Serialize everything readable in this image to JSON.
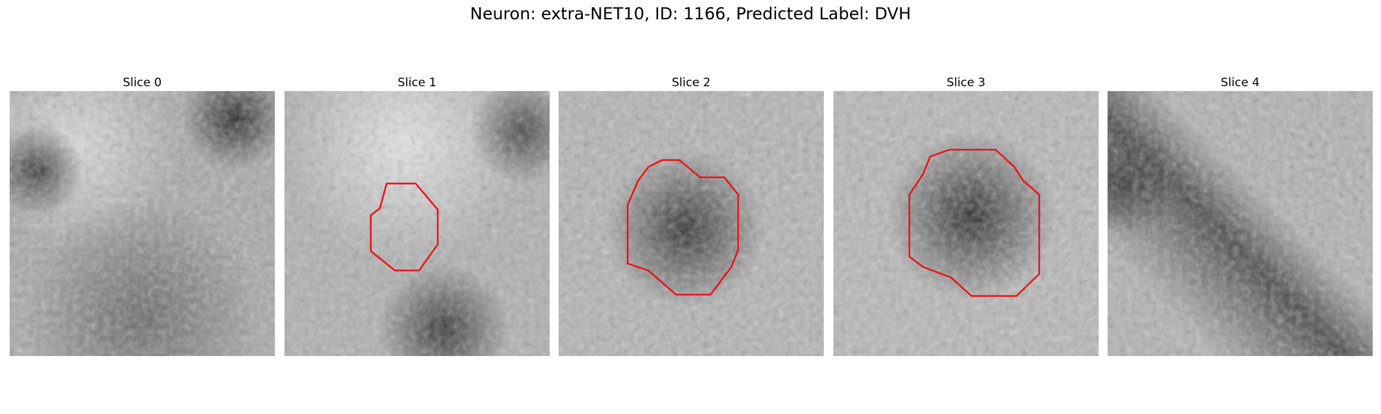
{
  "figure": {
    "title": "Neuron: extra-NET10, ID: 1166, Predicted Label: DVH"
  },
  "panels": [
    {
      "title": "Slice 0",
      "has_contour": false
    },
    {
      "title": "Slice 1",
      "has_contour": true
    },
    {
      "title": "Slice 2",
      "has_contour": true
    },
    {
      "title": "Slice 3",
      "has_contour": true
    },
    {
      "title": "Slice 4",
      "has_contour": false
    }
  ],
  "contour_color": "#e8161b",
  "colormap": "grayscale"
}
